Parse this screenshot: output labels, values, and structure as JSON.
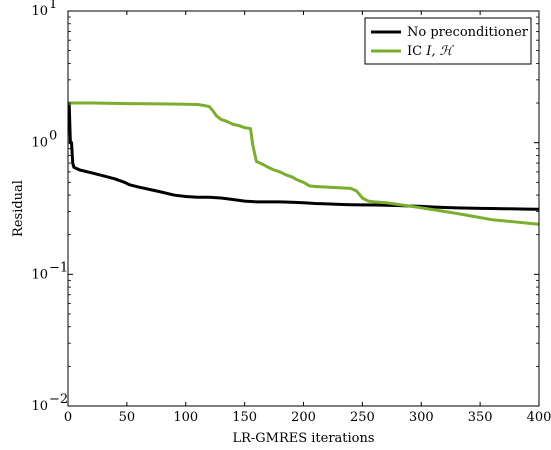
{
  "chart_data": {
    "type": "line",
    "title": "",
    "xlabel": "LR-GMRES iterations",
    "ylabel": "Residual",
    "xlim": [
      0,
      400
    ],
    "ylim": [
      0.01,
      10
    ],
    "yscale": "log",
    "grid": false,
    "legend_position": "top-right",
    "x_ticks": [
      "0",
      "50",
      "100",
      "150",
      "200",
      "250",
      "300",
      "350",
      "400"
    ],
    "y_ticks": [
      {
        "base": "10",
        "exp": "1",
        "value": 10
      },
      {
        "base": "10",
        "exp": "0",
        "value": 1
      },
      {
        "base": "10",
        "exp": "−1",
        "value": 0.1
      },
      {
        "base": "10",
        "exp": "−2",
        "value": 0.01
      }
    ],
    "series": [
      {
        "name": "No preconditioner",
        "color": "#000000",
        "x": [
          0,
          1,
          2,
          3,
          4,
          5,
          10,
          20,
          30,
          40,
          48,
          52,
          60,
          70,
          80,
          90,
          100,
          110,
          120,
          130,
          140,
          150,
          160,
          170,
          180,
          190,
          200,
          210,
          220,
          230,
          240,
          250,
          260,
          270,
          280,
          290,
          300,
          310,
          320,
          330,
          340,
          350,
          360,
          370,
          380,
          390,
          400
        ],
        "y": [
          2.0,
          2.0,
          1.0,
          1.0,
          0.7,
          0.65,
          0.62,
          0.59,
          0.56,
          0.53,
          0.5,
          0.48,
          0.46,
          0.44,
          0.42,
          0.4,
          0.39,
          0.385,
          0.385,
          0.38,
          0.37,
          0.36,
          0.355,
          0.355,
          0.355,
          0.353,
          0.35,
          0.345,
          0.343,
          0.34,
          0.338,
          0.337,
          0.336,
          0.335,
          0.333,
          0.33,
          0.328,
          0.325,
          0.322,
          0.32,
          0.318,
          0.317,
          0.316,
          0.315,
          0.314,
          0.313,
          0.312
        ]
      },
      {
        "name": "IC",
        "label_math": "I, ℋ",
        "color": "#7aae2e",
        "x": [
          0,
          20,
          50,
          80,
          100,
          110,
          115,
          120,
          123,
          126,
          130,
          135,
          140,
          145,
          150,
          155,
          157,
          160,
          163,
          166,
          170,
          175,
          180,
          185,
          190,
          195,
          200,
          205,
          210,
          220,
          230,
          240,
          245,
          250,
          255,
          260,
          270,
          280,
          290,
          300,
          310,
          320,
          330,
          340,
          350,
          360,
          370,
          380,
          390,
          400
        ],
        "y": [
          2.0,
          2.0,
          1.98,
          1.97,
          1.96,
          1.95,
          1.92,
          1.88,
          1.75,
          1.6,
          1.5,
          1.45,
          1.38,
          1.35,
          1.3,
          1.28,
          0.95,
          0.72,
          0.7,
          0.68,
          0.65,
          0.62,
          0.6,
          0.57,
          0.55,
          0.52,
          0.5,
          0.47,
          0.465,
          0.46,
          0.455,
          0.45,
          0.43,
          0.38,
          0.36,
          0.355,
          0.35,
          0.34,
          0.33,
          0.32,
          0.31,
          0.3,
          0.29,
          0.28,
          0.27,
          0.26,
          0.255,
          0.25,
          0.245,
          0.24
        ]
      }
    ]
  }
}
